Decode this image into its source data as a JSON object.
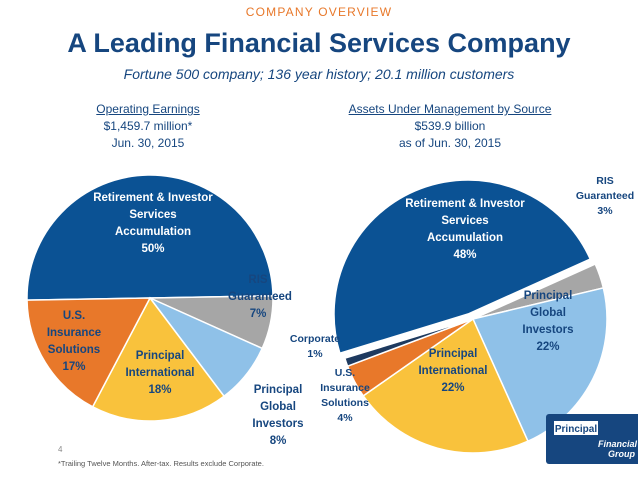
{
  "header": {
    "section_label": "COMPANY OVERVIEW",
    "title": "A Leading Financial Services Company",
    "subtitle": "Fortune 500 company; 136 year history; 20.1 million customers"
  },
  "left_chart_header": {
    "title": "Operating Earnings",
    "value": "$1,459.7 million*",
    "date": "Jun. 30, 2015"
  },
  "right_chart_header": {
    "title": "Assets Under Management by Source",
    "value": "$539.9 billion",
    "date": "as of Jun. 30, 2015"
  },
  "colors": {
    "title_blue": "#16467f",
    "orange": "#e8782a",
    "dark_blue": "#0b5294",
    "gray": "#a6a6a6",
    "light_blue": "#8fc1e8",
    "yellow": "#f9c23c",
    "navy": "#1e3a5f"
  },
  "chart_data": [
    {
      "type": "pie",
      "title": "Operating Earnings",
      "slices": [
        {
          "label": "Retirement & Investor Services Accumulation",
          "value": 50,
          "display": "50%",
          "color": "#0b5294",
          "text_color": "#ffffff"
        },
        {
          "label": "RIS Guaranteed",
          "value": 7,
          "display": "7%",
          "color": "#a6a6a6",
          "text_color": "#16467f"
        },
        {
          "label": "Principal Global Investors",
          "value": 8,
          "display": "8%",
          "color": "#8fc1e8",
          "text_color": "#16467f"
        },
        {
          "label": "Principal International",
          "value": 18,
          "display": "18%",
          "color": "#f9c23c",
          "text_color": "#16467f"
        },
        {
          "label": "U.S. Insurance Solutions",
          "value": 17,
          "display": "17%",
          "color": "#e8782a",
          "text_color": "#16467f"
        }
      ]
    },
    {
      "type": "pie",
      "title": "Assets Under Management by Source",
      "slices": [
        {
          "label": "Retirement & Investor Services Accumulation",
          "value": 48,
          "display": "48%",
          "color": "#0b5294",
          "text_color": "#ffffff"
        },
        {
          "label": "RIS Guaranteed",
          "value": 3,
          "display": "3%",
          "color": "#a6a6a6",
          "text_color": "#16467f"
        },
        {
          "label": "Principal Global Investors",
          "value": 22,
          "display": "22%",
          "color": "#8fc1e8",
          "text_color": "#16467f"
        },
        {
          "label": "Principal International",
          "value": 22,
          "display": "22%",
          "color": "#f9c23c",
          "text_color": "#ffffff"
        },
        {
          "label": "U.S. Insurance Solutions",
          "value": 4,
          "display": "4%",
          "color": "#e8782a",
          "text_color": "#16467f"
        },
        {
          "label": "Corporate",
          "value": 1,
          "display": "1%",
          "color": "#1e3a5f",
          "text_color": "#16467f"
        }
      ]
    }
  ],
  "slide": {
    "page_number": "4",
    "footnote": "*Trailing Twelve Months. After-tax. Results exclude Corporate."
  },
  "logo": {
    "line1": "Principal",
    "line2": "Financial",
    "line3": "Group"
  }
}
